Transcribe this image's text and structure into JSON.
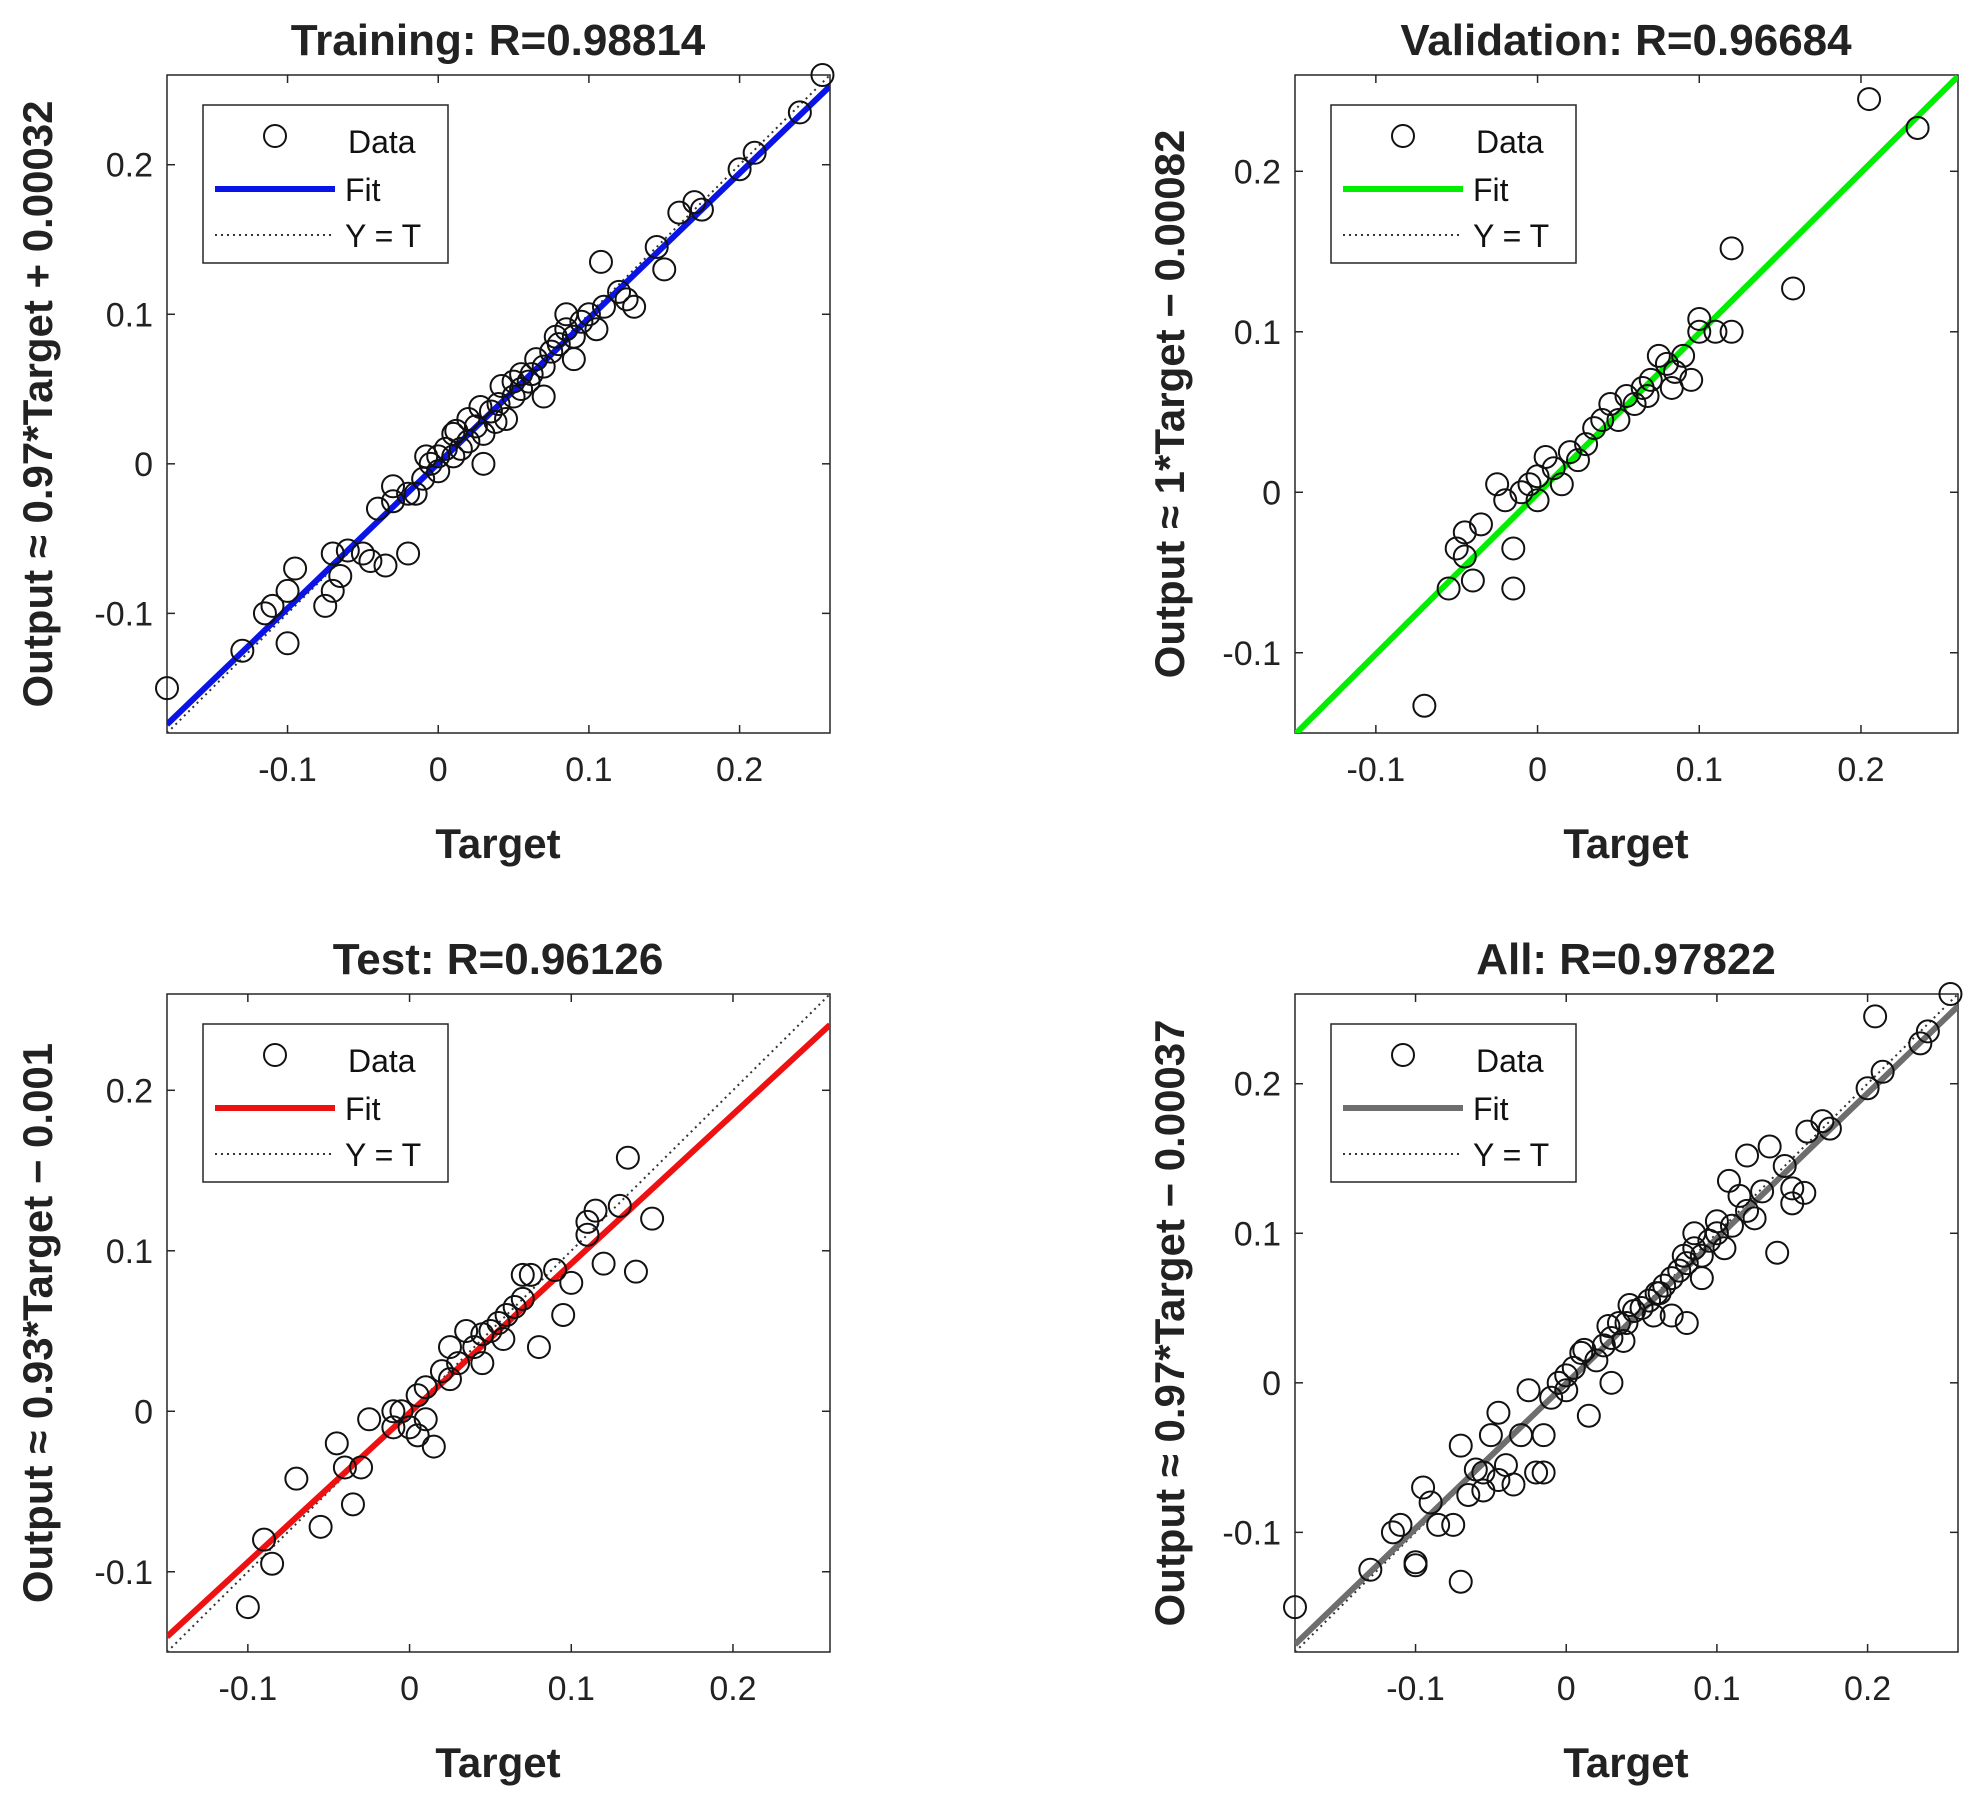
{
  "chart_data": [
    {
      "type": "scatter",
      "title": "Training: R=0.98814",
      "xlabel": "Target",
      "ylabel": "Output ≈ 0.97*Target + 0.00032",
      "xlim": [
        -0.18,
        0.26
      ],
      "ylim": [
        -0.18,
        0.26
      ],
      "xticks": [
        -0.1,
        0,
        0.1,
        0.2
      ],
      "yticks": [
        -0.1,
        0,
        0.1,
        0.2
      ],
      "xtick_labels": [
        "-0.1",
        "0",
        "0.1",
        "0.2"
      ],
      "ytick_labels": [
        "-0.1",
        "0",
        "0.1",
        "0.2"
      ],
      "fit": {
        "slope": 0.97,
        "intercept": 0.00032,
        "color": "#0a14e6"
      },
      "legend": {
        "data": "Data",
        "fit": "Fit",
        "identity": "Y = T",
        "position": "top-left"
      },
      "points": [
        [
          -0.18,
          -0.15
        ],
        [
          -0.13,
          -0.125
        ],
        [
          -0.115,
          -0.1
        ],
        [
          -0.11,
          -0.095
        ],
        [
          -0.1,
          -0.12
        ],
        [
          -0.095,
          -0.07
        ],
        [
          -0.1,
          -0.085
        ],
        [
          -0.075,
          -0.095
        ],
        [
          -0.07,
          -0.085
        ],
        [
          -0.065,
          -0.075
        ],
        [
          -0.07,
          -0.06
        ],
        [
          -0.06,
          -0.058
        ],
        [
          -0.05,
          -0.06
        ],
        [
          -0.045,
          -0.065
        ],
        [
          -0.035,
          -0.068
        ],
        [
          -0.02,
          -0.06
        ],
        [
          -0.04,
          -0.03
        ],
        [
          -0.03,
          -0.025
        ],
        [
          -0.03,
          -0.015
        ],
        [
          -0.02,
          -0.02
        ],
        [
          -0.015,
          -0.02
        ],
        [
          -0.01,
          -0.01
        ],
        [
          -0.005,
          0.0
        ],
        [
          0.0,
          -0.005
        ],
        [
          0.0,
          0.005
        ],
        [
          0.005,
          0.01
        ],
        [
          0.01,
          0.02
        ],
        [
          0.01,
          0.005
        ],
        [
          0.015,
          0.01
        ],
        [
          0.02,
          0.015
        ],
        [
          0.02,
          0.03
        ],
        [
          0.025,
          0.025
        ],
        [
          0.03,
          0.0
        ],
        [
          0.03,
          0.02
        ],
        [
          0.035,
          0.035
        ],
        [
          0.04,
          0.04
        ],
        [
          0.045,
          0.03
        ],
        [
          0.05,
          0.045
        ],
        [
          0.05,
          0.055
        ],
        [
          0.055,
          0.05
        ],
        [
          0.055,
          0.06
        ],
        [
          0.06,
          0.055
        ],
        [
          0.065,
          0.07
        ],
        [
          0.07,
          0.065
        ],
        [
          0.07,
          0.045
        ],
        [
          0.075,
          0.075
        ],
        [
          0.08,
          0.08
        ],
        [
          0.085,
          0.09
        ],
        [
          0.09,
          0.085
        ],
        [
          0.09,
          0.07
        ],
        [
          0.095,
          0.095
        ],
        [
          0.1,
          0.1
        ],
        [
          0.105,
          0.09
        ],
        [
          0.11,
          0.105
        ],
        [
          0.12,
          0.115
        ],
        [
          0.125,
          0.11
        ],
        [
          0.13,
          0.105
        ],
        [
          0.108,
          0.135
        ],
        [
          0.085,
          0.1
        ],
        [
          0.145,
          0.145
        ],
        [
          0.15,
          0.13
        ],
        [
          0.16,
          0.168
        ],
        [
          0.17,
          0.175
        ],
        [
          0.175,
          0.17
        ],
        [
          0.2,
          0.197
        ],
        [
          0.21,
          0.208
        ],
        [
          0.24,
          0.235
        ],
        [
          0.255,
          0.26
        ],
        [
          0.012,
          0.022
        ],
        [
          0.028,
          0.038
        ],
        [
          0.042,
          0.052
        ],
        [
          0.062,
          0.06
        ],
        [
          0.078,
          0.085
        ],
        [
          -0.008,
          0.005
        ],
        [
          0.038,
          0.028
        ]
      ]
    },
    {
      "type": "scatter",
      "title": "Validation: R=0.96684",
      "xlabel": "Target",
      "ylabel": "Output ≈ 1*Target − 0.00082",
      "xlim": [
        -0.15,
        0.26
      ],
      "ylim": [
        -0.15,
        0.26
      ],
      "xticks": [
        -0.1,
        0,
        0.1,
        0.2
      ],
      "yticks": [
        -0.1,
        0,
        0.1,
        0.2
      ],
      "xtick_labels": [
        "-0.1",
        "0",
        "0.1",
        "0.2"
      ],
      "ytick_labels": [
        "-0.1",
        "0",
        "0.1",
        "0.2"
      ],
      "fit": {
        "slope": 1,
        "intercept": -0.00082,
        "color": "#00ee00"
      },
      "legend": {
        "data": "Data",
        "fit": "Fit",
        "identity": "Y = T",
        "position": "top-left"
      },
      "points": [
        [
          -0.07,
          -0.133
        ],
        [
          -0.055,
          -0.06
        ],
        [
          -0.05,
          -0.035
        ],
        [
          -0.045,
          -0.04
        ],
        [
          -0.045,
          -0.025
        ],
        [
          -0.04,
          -0.055
        ],
        [
          -0.035,
          -0.02
        ],
        [
          -0.02,
          -0.005
        ],
        [
          -0.015,
          -0.035
        ],
        [
          -0.015,
          -0.06
        ],
        [
          -0.01,
          0.0
        ],
        [
          -0.005,
          0.005
        ],
        [
          0.0,
          0.01
        ],
        [
          0.0,
          -0.005
        ],
        [
          0.01,
          0.015
        ],
        [
          0.015,
          0.005
        ],
        [
          0.02,
          0.025
        ],
        [
          0.025,
          0.02
        ],
        [
          0.03,
          0.03
        ],
        [
          0.035,
          0.04
        ],
        [
          0.04,
          0.045
        ],
        [
          0.05,
          0.045
        ],
        [
          0.055,
          0.06
        ],
        [
          0.06,
          0.055
        ],
        [
          0.065,
          0.065
        ],
        [
          0.07,
          0.07
        ],
        [
          0.075,
          0.085
        ],
        [
          0.08,
          0.08
        ],
        [
          0.085,
          0.075
        ],
        [
          0.09,
          0.085
        ],
        [
          0.095,
          0.07
        ],
        [
          0.1,
          0.1
        ],
        [
          0.1,
          0.108
        ],
        [
          0.11,
          0.1
        ],
        [
          0.12,
          0.1
        ],
        [
          0.12,
          0.152
        ],
        [
          0.158,
          0.127
        ],
        [
          0.205,
          0.245
        ],
        [
          0.235,
          0.227
        ],
        [
          -0.025,
          0.005
        ],
        [
          0.005,
          0.022
        ],
        [
          0.045,
          0.055
        ],
        [
          0.068,
          0.06
        ],
        [
          0.083,
          0.065
        ]
      ]
    },
    {
      "type": "scatter",
      "title": "Test: R=0.96126",
      "xlabel": "Target",
      "ylabel": "Output ≈ 0.93*Target − 0.001",
      "xlim": [
        -0.15,
        0.26
      ],
      "ylim": [
        -0.15,
        0.26
      ],
      "xticks": [
        -0.1,
        0,
        0.1,
        0.2
      ],
      "yticks": [
        -0.1,
        0,
        0.1,
        0.2
      ],
      "xtick_labels": [
        "-0.1",
        "0",
        "0.1",
        "0.2"
      ],
      "ytick_labels": [
        "-0.1",
        "0",
        "0.1",
        "0.2"
      ],
      "fit": {
        "slope": 0.93,
        "intercept": -0.001,
        "color": "#ee1111"
      },
      "legend": {
        "data": "Data",
        "fit": "Fit",
        "identity": "Y = T",
        "position": "top-left"
      },
      "points": [
        [
          -0.1,
          -0.122
        ],
        [
          -0.09,
          -0.08
        ],
        [
          -0.085,
          -0.095
        ],
        [
          -0.07,
          -0.042
        ],
        [
          -0.055,
          -0.072
        ],
        [
          -0.045,
          -0.02
        ],
        [
          -0.04,
          -0.035
        ],
        [
          -0.035,
          -0.058
        ],
        [
          -0.03,
          -0.035
        ],
        [
          -0.025,
          -0.005
        ],
        [
          -0.01,
          -0.01
        ],
        [
          -0.01,
          0.0
        ],
        [
          -0.005,
          0.0
        ],
        [
          0.0,
          -0.01
        ],
        [
          0.005,
          0.01
        ],
        [
          0.005,
          -0.015
        ],
        [
          0.01,
          0.015
        ],
        [
          0.01,
          -0.005
        ],
        [
          0.015,
          -0.022
        ],
        [
          0.02,
          0.025
        ],
        [
          0.025,
          0.02
        ],
        [
          0.03,
          0.03
        ],
        [
          0.035,
          0.05
        ],
        [
          0.04,
          0.04
        ],
        [
          0.045,
          0.048
        ],
        [
          0.05,
          0.05
        ],
        [
          0.055,
          0.055
        ],
        [
          0.06,
          0.06
        ],
        [
          0.065,
          0.065
        ],
        [
          0.07,
          0.07
        ],
        [
          0.07,
          0.085
        ],
        [
          0.075,
          0.085
        ],
        [
          0.08,
          0.04
        ],
        [
          0.09,
          0.088
        ],
        [
          0.095,
          0.06
        ],
        [
          0.1,
          0.08
        ],
        [
          0.11,
          0.11
        ],
        [
          0.11,
          0.118
        ],
        [
          0.115,
          0.125
        ],
        [
          0.12,
          0.092
        ],
        [
          0.13,
          0.128
        ],
        [
          0.135,
          0.158
        ],
        [
          0.14,
          0.087
        ],
        [
          0.15,
          0.12
        ],
        [
          0.025,
          0.04
        ],
        [
          0.045,
          0.03
        ],
        [
          0.058,
          0.045
        ]
      ]
    },
    {
      "type": "scatter",
      "title": "All: R=0.97822",
      "xlabel": "Target",
      "ylabel": "Output ≈ 0.97*Target − 0.00037",
      "xlim": [
        -0.18,
        0.26
      ],
      "ylim": [
        -0.18,
        0.26
      ],
      "xticks": [
        -0.1,
        0,
        0.1,
        0.2
      ],
      "yticks": [
        -0.1,
        0,
        0.1,
        0.2
      ],
      "xtick_labels": [
        "-0.1",
        "0",
        "0.1",
        "0.2"
      ],
      "ytick_labels": [
        "-0.1",
        "0",
        "0.1",
        "0.2"
      ],
      "fit": {
        "slope": 0.97,
        "intercept": -0.00037,
        "color": "#6e6e6e"
      },
      "legend": {
        "data": "Data",
        "fit": "Fit",
        "identity": "Y = T",
        "position": "top-left"
      },
      "points": [
        [
          -0.18,
          -0.15
        ],
        [
          -0.13,
          -0.125
        ],
        [
          -0.115,
          -0.1
        ],
        [
          -0.11,
          -0.095
        ],
        [
          -0.1,
          -0.12
        ],
        [
          -0.1,
          -0.122
        ],
        [
          -0.095,
          -0.07
        ],
        [
          -0.09,
          -0.08
        ],
        [
          -0.085,
          -0.095
        ],
        [
          -0.075,
          -0.095
        ],
        [
          -0.07,
          -0.133
        ],
        [
          -0.07,
          -0.042
        ],
        [
          -0.065,
          -0.075
        ],
        [
          -0.06,
          -0.058
        ],
        [
          -0.055,
          -0.072
        ],
        [
          -0.055,
          -0.06
        ],
        [
          -0.05,
          -0.035
        ],
        [
          -0.045,
          -0.02
        ],
        [
          -0.045,
          -0.065
        ],
        [
          -0.04,
          -0.055
        ],
        [
          -0.035,
          -0.068
        ],
        [
          -0.03,
          -0.035
        ],
        [
          -0.025,
          -0.005
        ],
        [
          -0.02,
          -0.06
        ],
        [
          -0.015,
          -0.06
        ],
        [
          -0.015,
          -0.035
        ],
        [
          -0.01,
          -0.01
        ],
        [
          -0.005,
          0.0
        ],
        [
          0.0,
          -0.005
        ],
        [
          0.0,
          0.005
        ],
        [
          0.005,
          0.01
        ],
        [
          0.01,
          0.02
        ],
        [
          0.015,
          -0.022
        ],
        [
          0.02,
          0.015
        ],
        [
          0.025,
          0.025
        ],
        [
          0.03,
          0.03
        ],
        [
          0.035,
          0.04
        ],
        [
          0.04,
          0.04
        ],
        [
          0.045,
          0.048
        ],
        [
          0.05,
          0.05
        ],
        [
          0.055,
          0.055
        ],
        [
          0.06,
          0.06
        ],
        [
          0.065,
          0.065
        ],
        [
          0.07,
          0.07
        ],
        [
          0.075,
          0.075
        ],
        [
          0.08,
          0.08
        ],
        [
          0.08,
          0.04
        ],
        [
          0.085,
          0.09
        ],
        [
          0.09,
          0.085
        ],
        [
          0.095,
          0.095
        ],
        [
          0.1,
          0.1
        ],
        [
          0.1,
          0.108
        ],
        [
          0.105,
          0.09
        ],
        [
          0.11,
          0.105
        ],
        [
          0.115,
          0.125
        ],
        [
          0.12,
          0.115
        ],
        [
          0.12,
          0.152
        ],
        [
          0.125,
          0.11
        ],
        [
          0.13,
          0.128
        ],
        [
          0.135,
          0.158
        ],
        [
          0.14,
          0.087
        ],
        [
          0.145,
          0.145
        ],
        [
          0.15,
          0.13
        ],
        [
          0.15,
          0.12
        ],
        [
          0.158,
          0.127
        ],
        [
          0.16,
          0.168
        ],
        [
          0.17,
          0.175
        ],
        [
          0.175,
          0.17
        ],
        [
          0.2,
          0.197
        ],
        [
          0.205,
          0.245
        ],
        [
          0.21,
          0.208
        ],
        [
          0.235,
          0.227
        ],
        [
          0.24,
          0.235
        ],
        [
          0.255,
          0.26
        ],
        [
          0.085,
          0.1
        ],
        [
          0.108,
          0.135
        ],
        [
          0.03,
          0.0
        ],
        [
          0.07,
          0.045
        ],
        [
          0.09,
          0.07
        ],
        [
          0.012,
          0.022
        ],
        [
          0.028,
          0.038
        ],
        [
          0.042,
          0.052
        ],
        [
          0.062,
          0.06
        ],
        [
          0.078,
          0.085
        ],
        [
          0.038,
          0.028
        ],
        [
          0.058,
          0.045
        ]
      ]
    }
  ]
}
